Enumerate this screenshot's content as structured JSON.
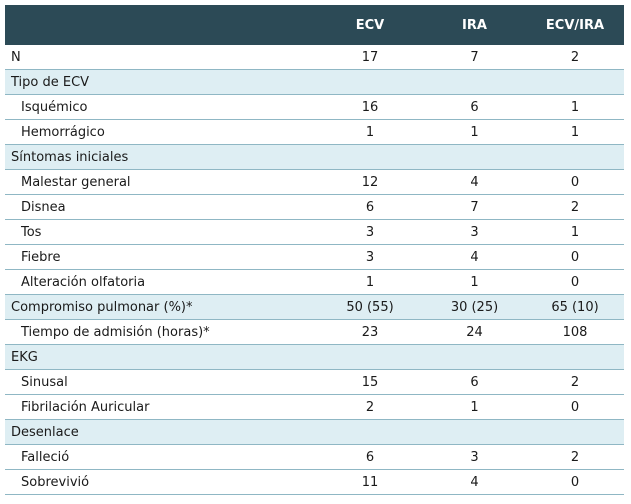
{
  "table": {
    "headers": [
      "",
      "ECV",
      "IRA",
      "ECV/IRA"
    ],
    "rows": [
      {
        "label": "N",
        "values": [
          "17",
          "7",
          "2"
        ],
        "indent": false,
        "shaded": false
      },
      {
        "label": "Tipo de ECV",
        "values": [
          "",
          "",
          ""
        ],
        "indent": false,
        "shaded": true
      },
      {
        "label": "Isquémico",
        "values": [
          "16",
          "6",
          "1"
        ],
        "indent": true,
        "shaded": false
      },
      {
        "label": "Hemorrágico",
        "values": [
          "1",
          "1",
          "1"
        ],
        "indent": true,
        "shaded": false
      },
      {
        "label": "Síntomas iniciales",
        "values": [
          "",
          "",
          ""
        ],
        "indent": false,
        "shaded": true
      },
      {
        "label": "Malestar general",
        "values": [
          "12",
          "4",
          "0"
        ],
        "indent": true,
        "shaded": false
      },
      {
        "label": "Disnea",
        "values": [
          "6",
          "7",
          "2"
        ],
        "indent": true,
        "shaded": false
      },
      {
        "label": "Tos",
        "values": [
          "3",
          "3",
          "1"
        ],
        "indent": true,
        "shaded": false
      },
      {
        "label": "Fiebre",
        "values": [
          "3",
          "4",
          "0"
        ],
        "indent": true,
        "shaded": false
      },
      {
        "label": "Alteración olfatoria",
        "values": [
          "1",
          "1",
          "0"
        ],
        "indent": true,
        "shaded": false
      },
      {
        "label": "Compromiso pulmonar (%)*",
        "values": [
          "50 (55)",
          "30 (25)",
          "65 (10)"
        ],
        "indent": false,
        "shaded": true
      },
      {
        "label": "Tiempo de admisión (horas)*",
        "values": [
          "23",
          "24",
          "108"
        ],
        "indent": true,
        "shaded": false
      },
      {
        "label": "EKG",
        "values": [
          "",
          "",
          ""
        ],
        "indent": false,
        "shaded": true
      },
      {
        "label": "Sinusal",
        "values": [
          "15",
          "6",
          "2"
        ],
        "indent": true,
        "shaded": false
      },
      {
        "label": "Fibrilación Auricular",
        "values": [
          "2",
          "1",
          "0"
        ],
        "indent": true,
        "shaded": false
      },
      {
        "label": "Desenlace",
        "values": [
          "",
          "",
          ""
        ],
        "indent": false,
        "shaded": true
      },
      {
        "label": "Falleció",
        "values": [
          "6",
          "3",
          "2"
        ],
        "indent": true,
        "shaded": false
      },
      {
        "label": "Sobrevivió",
        "values": [
          "11",
          "4",
          "0"
        ],
        "indent": true,
        "shaded": false
      }
    ]
  }
}
